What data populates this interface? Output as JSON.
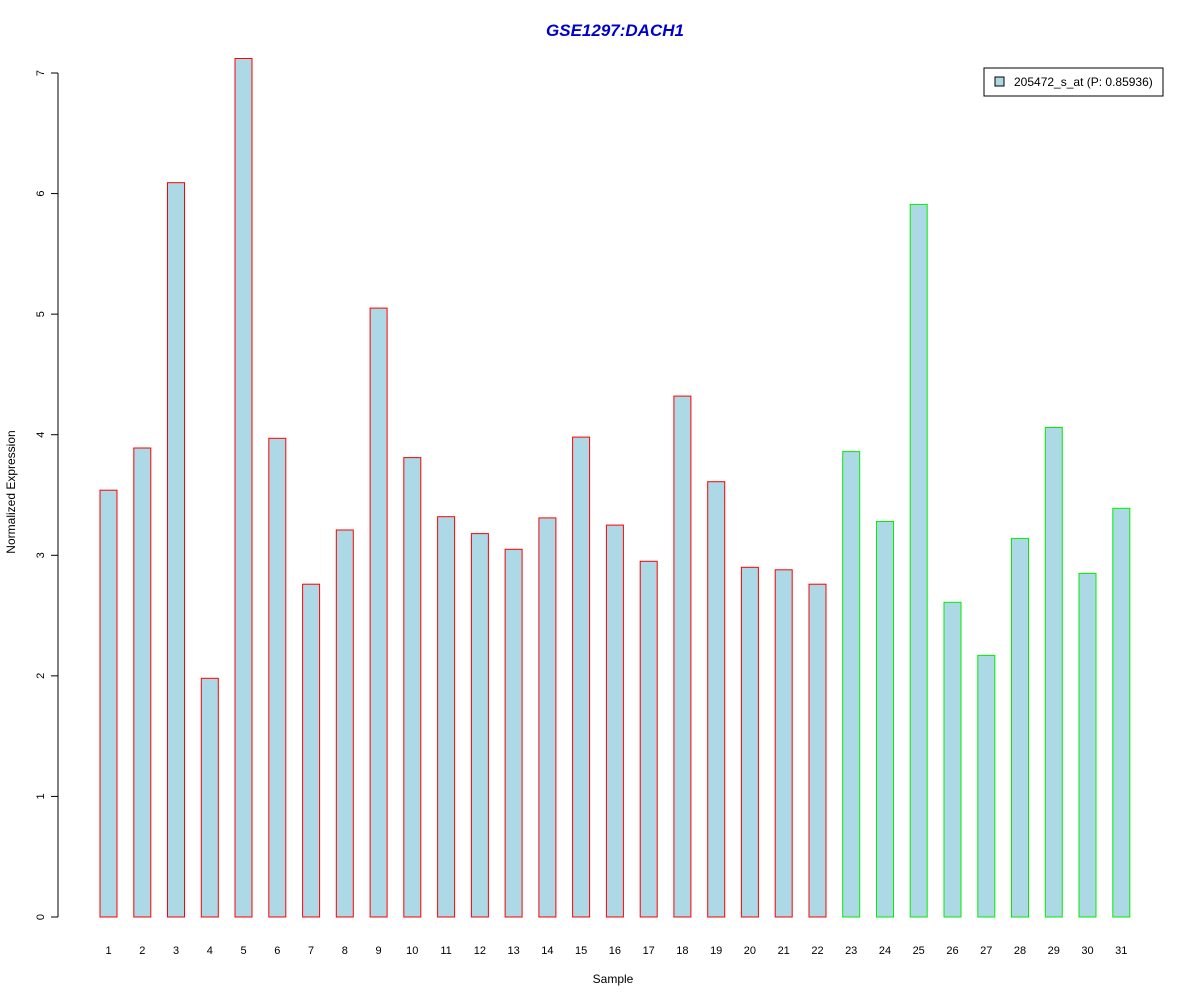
{
  "chart_data": {
    "type": "bar",
    "title": "GSE1297:DACH1",
    "xlabel": "Sample",
    "ylabel": "Normalized Expression",
    "ylim": [
      0,
      7
    ],
    "yticks": [
      0,
      1,
      2,
      3,
      4,
      5,
      6,
      7
    ],
    "grid": false,
    "legend_position": "top-right",
    "series": [
      {
        "name": "205472_s_at (P: 0.85936)",
        "fill_color": "#add8e6",
        "values": [
          3.54,
          3.89,
          6.09,
          1.98,
          7.12,
          3.97,
          2.76,
          3.21,
          5.05,
          3.81,
          3.32,
          3.18,
          3.05,
          3.31,
          3.98,
          3.25,
          2.95,
          4.32,
          3.61,
          2.9,
          2.88,
          2.76,
          3.86,
          3.28,
          5.91,
          2.61,
          2.17,
          3.14,
          4.06,
          2.85,
          3.39
        ]
      }
    ],
    "categories": [
      "1",
      "2",
      "3",
      "4",
      "5",
      "6",
      "7",
      "8",
      "9",
      "10",
      "11",
      "12",
      "13",
      "14",
      "15",
      "16",
      "17",
      "18",
      "19",
      "20",
      "21",
      "22",
      "23",
      "24",
      "25",
      "26",
      "27",
      "28",
      "29",
      "30",
      "31"
    ],
    "groups": [
      {
        "border_color": "#ff0000",
        "count": 22
      },
      {
        "border_color": "#00ee00",
        "count": 9
      }
    ]
  }
}
